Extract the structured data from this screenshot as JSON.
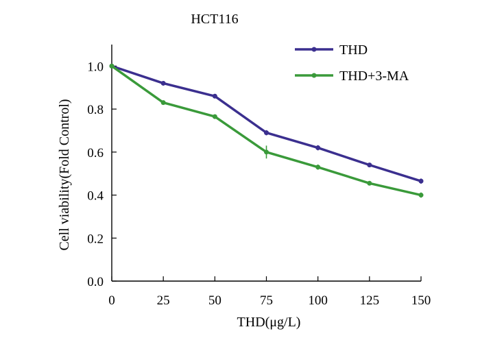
{
  "chart_data": {
    "type": "line",
    "title": "HCT116",
    "xlabel": "THD(μg/L)",
    "ylabel": "Cell viability(Fold Control)",
    "x": [
      0,
      25,
      50,
      75,
      100,
      125,
      150
    ],
    "x_tick_labels": [
      "0",
      "25",
      "50",
      "75",
      "100",
      "125",
      "150"
    ],
    "xlim": [
      0,
      150
    ],
    "y_ticks": [
      0.0,
      0.2,
      0.4,
      0.6,
      0.8,
      1.0
    ],
    "y_tick_labels": [
      "0.0",
      "0.2",
      "0.4",
      "0.6",
      "0.8",
      "1.0"
    ],
    "ylim": [
      0,
      1.1
    ],
    "grid": false,
    "legend_position": "top-right",
    "series": [
      {
        "name": "THD",
        "color": "#3b2f8f",
        "values": [
          1.0,
          0.92,
          0.86,
          0.69,
          0.62,
          0.54,
          0.465
        ],
        "errors": [
          0.01,
          0.01,
          0.008,
          0.012,
          0.012,
          0.006,
          0.012
        ]
      },
      {
        "name": "THD+3-MA",
        "color": "#3a9a3a",
        "values": [
          1.0,
          0.83,
          0.765,
          0.6,
          0.53,
          0.455,
          0.4
        ],
        "errors": [
          0.01,
          0.01,
          0.01,
          0.03,
          0.012,
          0.008,
          0.012
        ]
      }
    ]
  }
}
